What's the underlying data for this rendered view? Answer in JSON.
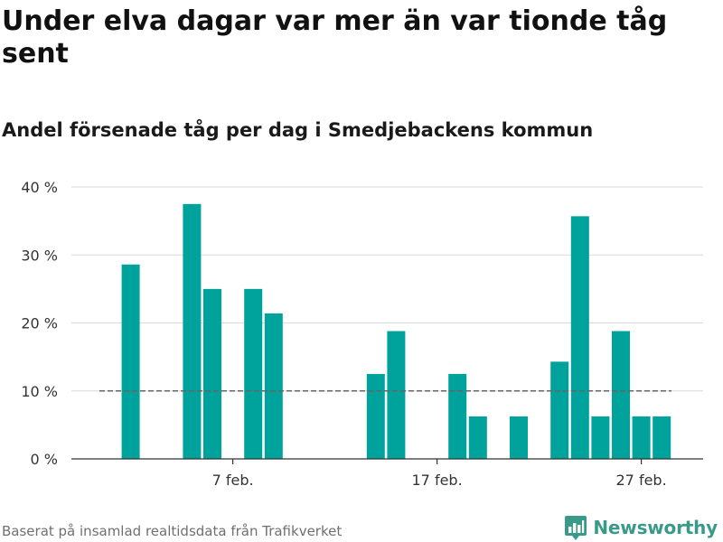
{
  "header": {
    "title": "Under elva dagar var mer än var tionde tåg sent",
    "subtitle": "Andel försenade tåg per dag i Smedjebackens kommun"
  },
  "footer": {
    "source": "Baserat på insamlad realtidsdata från Trafikverket",
    "brand": "Newsworthy",
    "brand_icon": "bar-chart-logo-icon"
  },
  "colors": {
    "bar": "#00a39b",
    "grid": "#d9d9d9",
    "axis": "#333333",
    "reference_line": "#666666",
    "brand": "#3a9a8a"
  },
  "chart_data": {
    "type": "bar",
    "title": "Under elva dagar var mer än var tionde tåg sent",
    "subtitle": "Andel försenade tåg per dag i Smedjebackens kommun",
    "xlabel": "",
    "ylabel": "",
    "x_type": "date",
    "x": [
      "2024-02-01",
      "2024-02-02",
      "2024-02-03",
      "2024-02-04",
      "2024-02-05",
      "2024-02-06",
      "2024-02-07",
      "2024-02-08",
      "2024-02-09",
      "2024-02-10",
      "2024-02-11",
      "2024-02-12",
      "2024-02-13",
      "2024-02-14",
      "2024-02-15",
      "2024-02-16",
      "2024-02-17",
      "2024-02-18",
      "2024-02-19",
      "2024-02-20",
      "2024-02-21",
      "2024-02-22",
      "2024-02-23",
      "2024-02-24",
      "2024-02-25",
      "2024-02-26",
      "2024-02-27",
      "2024-02-28",
      "2024-02-29"
    ],
    "values": [
      null,
      28.6,
      null,
      null,
      37.5,
      25.0,
      null,
      25.0,
      21.4,
      null,
      null,
      null,
      null,
      12.5,
      18.8,
      null,
      null,
      12.5,
      6.25,
      null,
      6.25,
      null,
      14.3,
      35.7,
      6.25,
      18.8,
      6.25,
      6.25,
      null
    ],
    "series": [
      {
        "name": "",
        "values": [
          null,
          28.6,
          null,
          null,
          37.5,
          25.0,
          null,
          25.0,
          21.4,
          null,
          null,
          null,
          null,
          12.5,
          18.8,
          null,
          null,
          12.5,
          6.25,
          null,
          6.25,
          null,
          14.3,
          35.7,
          6.25,
          18.8,
          6.25,
          6.25,
          null
        ]
      }
    ],
    "reference_line": {
      "value": 10,
      "style": "dashed"
    },
    "ylim": [
      0,
      40
    ],
    "y_ticks": [
      0,
      10,
      20,
      30,
      40
    ],
    "y_tick_labels": [
      "0 %",
      "10 %",
      "20 %",
      "30 %",
      "40 %"
    ],
    "x_ticks": [
      "2024-02-07",
      "2024-02-17",
      "2024-02-27"
    ],
    "x_tick_labels": [
      "7 feb.",
      "17 feb.",
      "27 feb."
    ],
    "grid": true,
    "legend": "none"
  }
}
